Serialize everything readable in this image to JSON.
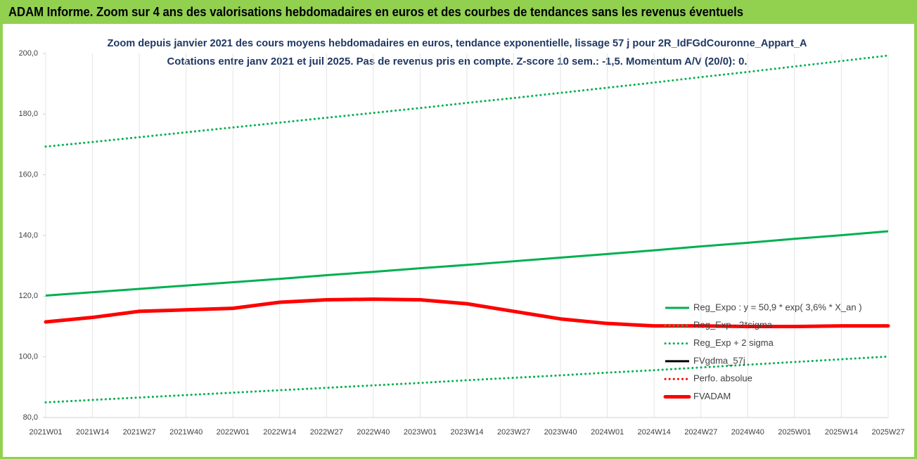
{
  "header": {
    "title": "ADAM Informe. Zoom sur 4 ans des valorisations hebdomadaires en euros et des courbes de tendances sans les revenus éventuels"
  },
  "chart_data": {
    "type": "line",
    "title": "Zoom depuis janvier 2021 des cours moyens hebdomadaires en euros, tendance exponentielle, lissage 57 j pour 2R_IdFGdCouronne_Appart_A",
    "subtitle": "Cotations entre janv 2021 et juil 2025. Pas de revenus pris en compte. Z-score 10 sem.: -1,5. Momentum A/V (20/0): 0.",
    "categories": [
      "2021W01",
      "2021W14",
      "2021W27",
      "2021W40",
      "2022W01",
      "2022W14",
      "2022W27",
      "2022W40",
      "2023W01",
      "2023W14",
      "2023W27",
      "2023W40",
      "2024W01",
      "2024W14",
      "2024W27",
      "2024W40",
      "2025W01",
      "2025W14",
      "2025W27"
    ],
    "series": [
      {
        "name": "Reg_Expo : y = 50,9 * exp( 3,6% *  X_an )",
        "color": "#00b050",
        "style": "solid",
        "values": [
          120.2,
          121.3,
          122.4,
          123.5,
          124.6,
          125.7,
          126.9,
          128.0,
          129.2,
          130.3,
          131.5,
          132.7,
          133.9,
          135.1,
          136.4,
          137.6,
          138.9,
          140.1,
          141.4
        ]
      },
      {
        "name": "Reg_Exp - 2*sigma",
        "color": "#00b050",
        "style": "dotted",
        "values": [
          85.0,
          85.8,
          86.6,
          87.4,
          88.2,
          89.0,
          89.8,
          90.6,
          91.4,
          92.3,
          93.1,
          93.9,
          94.8,
          95.6,
          96.5,
          97.4,
          98.3,
          99.2,
          100.1
        ]
      },
      {
        "name": "Reg_Exp + 2 sigma",
        "color": "#00b050",
        "style": "dotted",
        "values": [
          169.3,
          170.8,
          172.4,
          174.0,
          175.6,
          177.2,
          178.8,
          180.4,
          182.0,
          183.7,
          185.3,
          187.0,
          188.7,
          190.4,
          192.2,
          193.9,
          195.7,
          197.5,
          199.3
        ]
      },
      {
        "name": "FVgdma_57j",
        "color": "#000000",
        "style": "solid",
        "values": [
          111.6,
          113.0,
          114.9,
          115.6,
          116.2,
          118.0,
          118.8,
          119.0,
          118.6,
          117.4,
          115.0,
          112.6,
          111.1,
          110.3,
          110.2,
          110.0,
          110.0,
          110.2,
          110.2
        ]
      },
      {
        "name": "Perfo. absolue",
        "color": "#ff0000",
        "style": "dotted",
        "values": [
          111.5,
          113.0,
          115.0,
          115.5,
          116.0,
          118.0,
          118.8,
          119.0,
          118.8,
          117.5,
          115.0,
          112.5,
          111.0,
          110.2,
          110.2,
          110.0,
          110.0,
          110.2,
          110.2
        ]
      },
      {
        "name": "FVADAM",
        "color": "#ff0000",
        "style": "thick",
        "values": [
          111.5,
          113.0,
          115.0,
          115.5,
          116.0,
          118.0,
          118.8,
          119.0,
          118.8,
          117.5,
          115.0,
          112.5,
          111.0,
          110.2,
          110.2,
          110.0,
          110.0,
          110.2,
          110.2
        ]
      }
    ],
    "ylim": [
      80,
      200
    ],
    "yticks": [
      {
        "value": 80,
        "label": "80,0"
      },
      {
        "value": 100,
        "label": "100,0"
      },
      {
        "value": 120,
        "label": "120,0"
      },
      {
        "value": 140,
        "label": "140,0"
      },
      {
        "value": 160,
        "label": "160,0"
      },
      {
        "value": 180,
        "label": "180,0"
      },
      {
        "value": 200,
        "label": "200,0"
      }
    ],
    "grid": true,
    "legend": "right"
  }
}
